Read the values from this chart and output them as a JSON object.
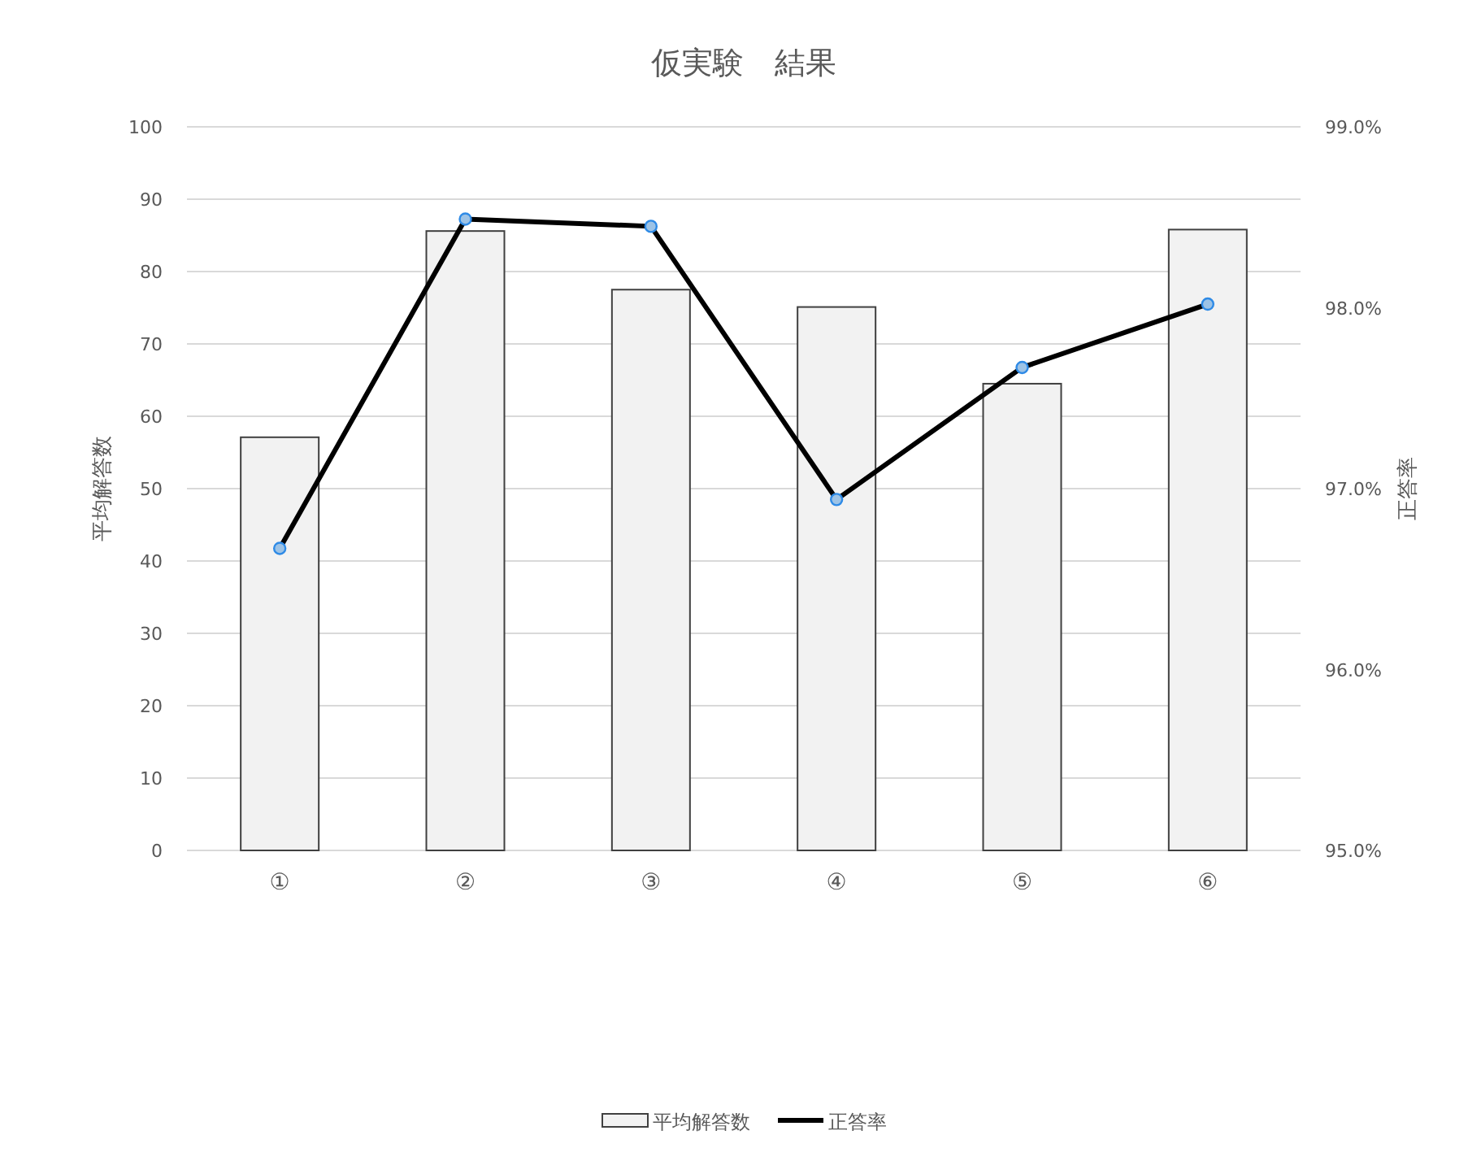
{
  "chart_data": {
    "type": "bar",
    "title": "仮実験　結果",
    "ylabel": "平均解答数",
    "y2label": "正答率",
    "categories": [
      "①",
      "②",
      "③",
      "④",
      "⑤",
      "⑥"
    ],
    "series": [
      {
        "name": "平均解答数",
        "color": "#f2f2f2",
        "values": [
          57.1,
          85.6,
          77.5,
          75.1,
          64.5,
          85.8
        ]
      },
      {
        "name": "正答率",
        "type": "line",
        "axis": "y2",
        "color": "#000000",
        "marker": "circle",
        "values": [
          96.67,
          98.49,
          98.45,
          96.94,
          97.67,
          98.02
        ]
      }
    ],
    "ylim": [
      0,
      100
    ],
    "yticks": [
      0,
      10,
      20,
      30,
      40,
      50,
      60,
      70,
      80,
      90,
      100
    ],
    "y2lim": [
      95,
      99
    ],
    "y2ticks": [
      {
        "value": 95,
        "label": "95.0%"
      },
      {
        "value": 96,
        "label": "96.0%"
      },
      {
        "value": 97,
        "label": "97.0%"
      },
      {
        "value": 98,
        "label": "98.0%"
      },
      {
        "value": 99,
        "label": "99.0%"
      }
    ],
    "grid": "y",
    "legend": "bottom"
  }
}
